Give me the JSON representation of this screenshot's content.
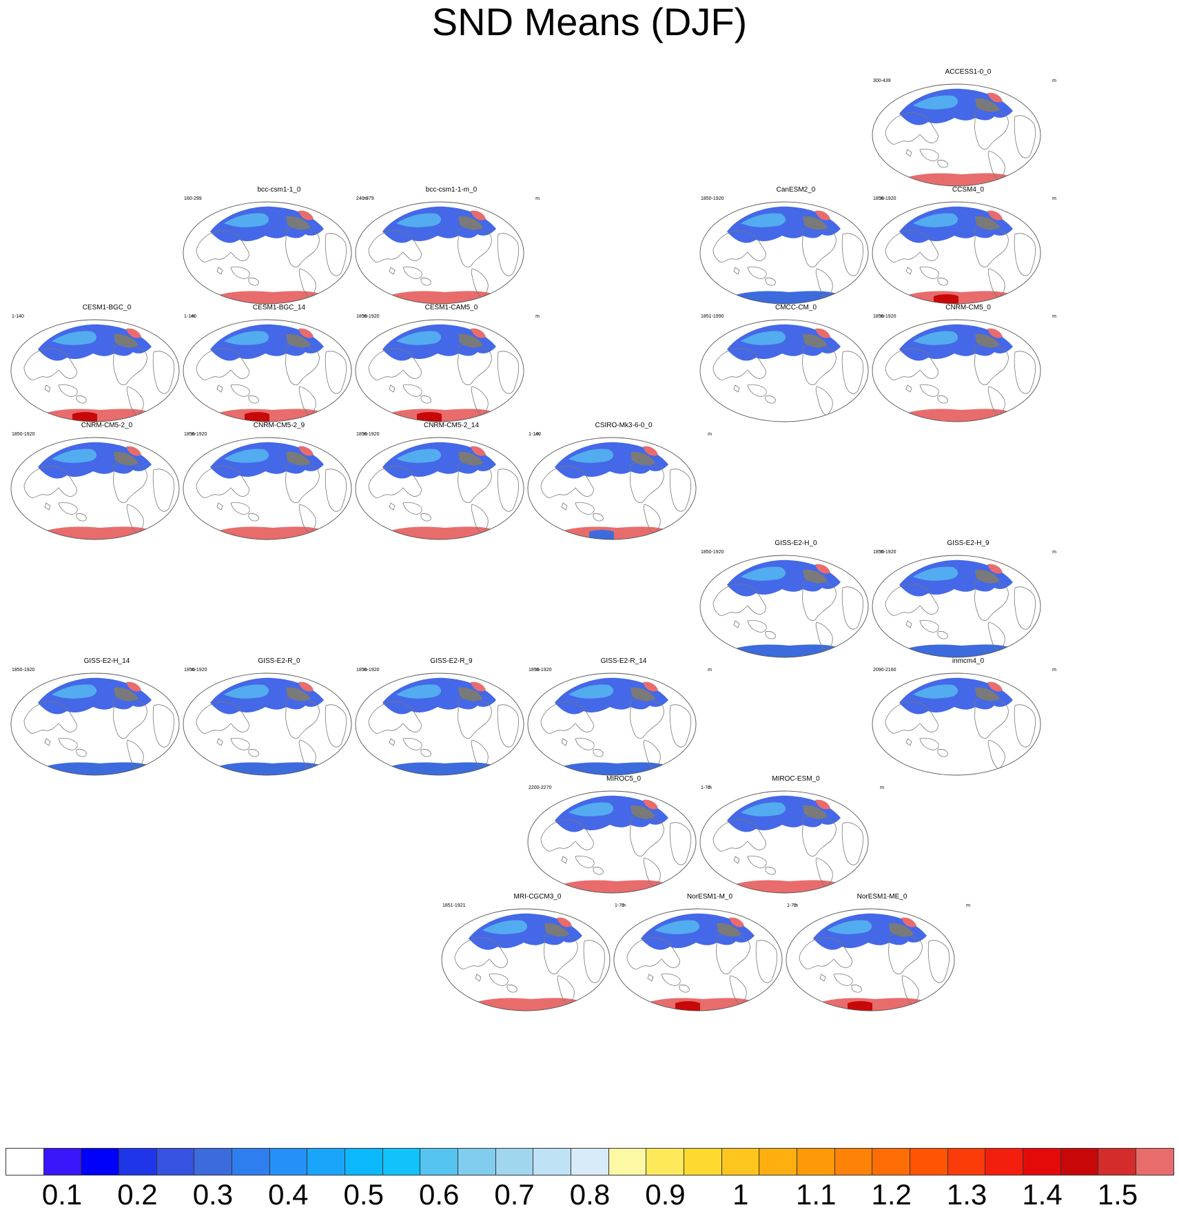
{
  "title": "SND Means (DJF)",
  "panels": [
    {
      "name": "ACCESS1-0_0",
      "period": "300-439",
      "units": "m",
      "style": "red"
    },
    {
      "name": "bcc-csm1-1_0",
      "period": "160-299",
      "units": "m",
      "style": "red"
    },
    {
      "name": "bcc-csm1-1-m_0",
      "period": "240-379",
      "units": "m",
      "style": "red"
    },
    {
      "name": "CanESM2_0",
      "period": "1850-1920",
      "units": "m",
      "style": "blue"
    },
    {
      "name": "CCSM4_0",
      "period": "1850-1920",
      "units": "m",
      "style": "dark"
    },
    {
      "name": "CESM1-BGC_0",
      "period": "1-140",
      "units": "m",
      "style": "dark"
    },
    {
      "name": "CESM1-BGC_14",
      "period": "1-140",
      "units": "m",
      "style": "dark"
    },
    {
      "name": "CESM1-CAM5_0",
      "period": "1850-1920",
      "units": "m",
      "style": "dark"
    },
    {
      "name": "CMCC-CM_0",
      "period": "1851-1990",
      "units": "m",
      "style": "none"
    },
    {
      "name": "CNRM-CM5_0",
      "period": "1850-1920",
      "units": "m",
      "style": "red"
    },
    {
      "name": "CNRM-CM5-2_0",
      "period": "1850-1920",
      "units": "m",
      "style": "red"
    },
    {
      "name": "CNRM-CM5-2_9",
      "period": "1850-1920",
      "units": "m",
      "style": "red"
    },
    {
      "name": "CNRM-CM5-2_14",
      "period": "1850-1920",
      "units": "m",
      "style": "red"
    },
    {
      "name": "CSIRO-Mk3-6-0_0",
      "period": "1-140",
      "units": "m",
      "style": "mixed"
    },
    {
      "name": "GISS-E2-H_0",
      "period": "1850-1920",
      "units": "m",
      "style": "blue"
    },
    {
      "name": "GISS-E2-H_9",
      "period": "1850-1920",
      "units": "m",
      "style": "blue"
    },
    {
      "name": "GISS-E2-H_14",
      "period": "1850-1920",
      "units": "m",
      "style": "blue"
    },
    {
      "name": "GISS-E2-R_0",
      "period": "1850-1920",
      "units": "m",
      "style": "blue"
    },
    {
      "name": "GISS-E2-R_9",
      "period": "1850-1920",
      "units": "m",
      "style": "blue"
    },
    {
      "name": "GISS-E2-R_14",
      "period": "1850-1920",
      "units": "m",
      "style": "blue"
    },
    {
      "name": "inmcm4_0",
      "period": "2090-2160",
      "units": "m",
      "style": "none"
    },
    {
      "name": "MIROC5_0",
      "period": "2200-2270",
      "units": "m",
      "style": "red"
    },
    {
      "name": "MIROC-ESM_0",
      "period": "1-70",
      "units": "m",
      "style": "red"
    },
    {
      "name": "MRI-CGCM3_0",
      "period": "1851-1921",
      "units": "m",
      "style": "red"
    },
    {
      "name": "NorESM1-M_0",
      "period": "1-70",
      "units": "m",
      "style": "dark"
    },
    {
      "name": "NorESM1-ME_0",
      "period": "1-70",
      "units": "m",
      "style": "dark"
    }
  ],
  "colorbar": {
    "colors": [
      "#ffffff",
      "#3a16fb",
      "#0000fb",
      "#1f35e8",
      "#3552e0",
      "#3c6bde",
      "#2f7ef0",
      "#2591f8",
      "#1aa5fa",
      "#0bb8fb",
      "#11c2fb",
      "#55c4f0",
      "#80cdf0",
      "#a1d6ef",
      "#bfe2f4",
      "#d8ebf8",
      "#fdf8a3",
      "#fee95a",
      "#fed930",
      "#fec51e",
      "#feaf0f",
      "#fe9a07",
      "#fe8207",
      "#fe6d05",
      "#fe5404",
      "#fc3b0a",
      "#f41e0e",
      "#e50a0a",
      "#c80808",
      "#d42b2b",
      "#e86c6c"
    ],
    "labels": [
      "0.1",
      "0.2",
      "0.3",
      "0.4",
      "0.5",
      "0.6",
      "0.7",
      "0.8",
      "0.9",
      "1",
      "1.1",
      "1.2",
      "1.3",
      "1.4",
      "1.5"
    ]
  }
}
